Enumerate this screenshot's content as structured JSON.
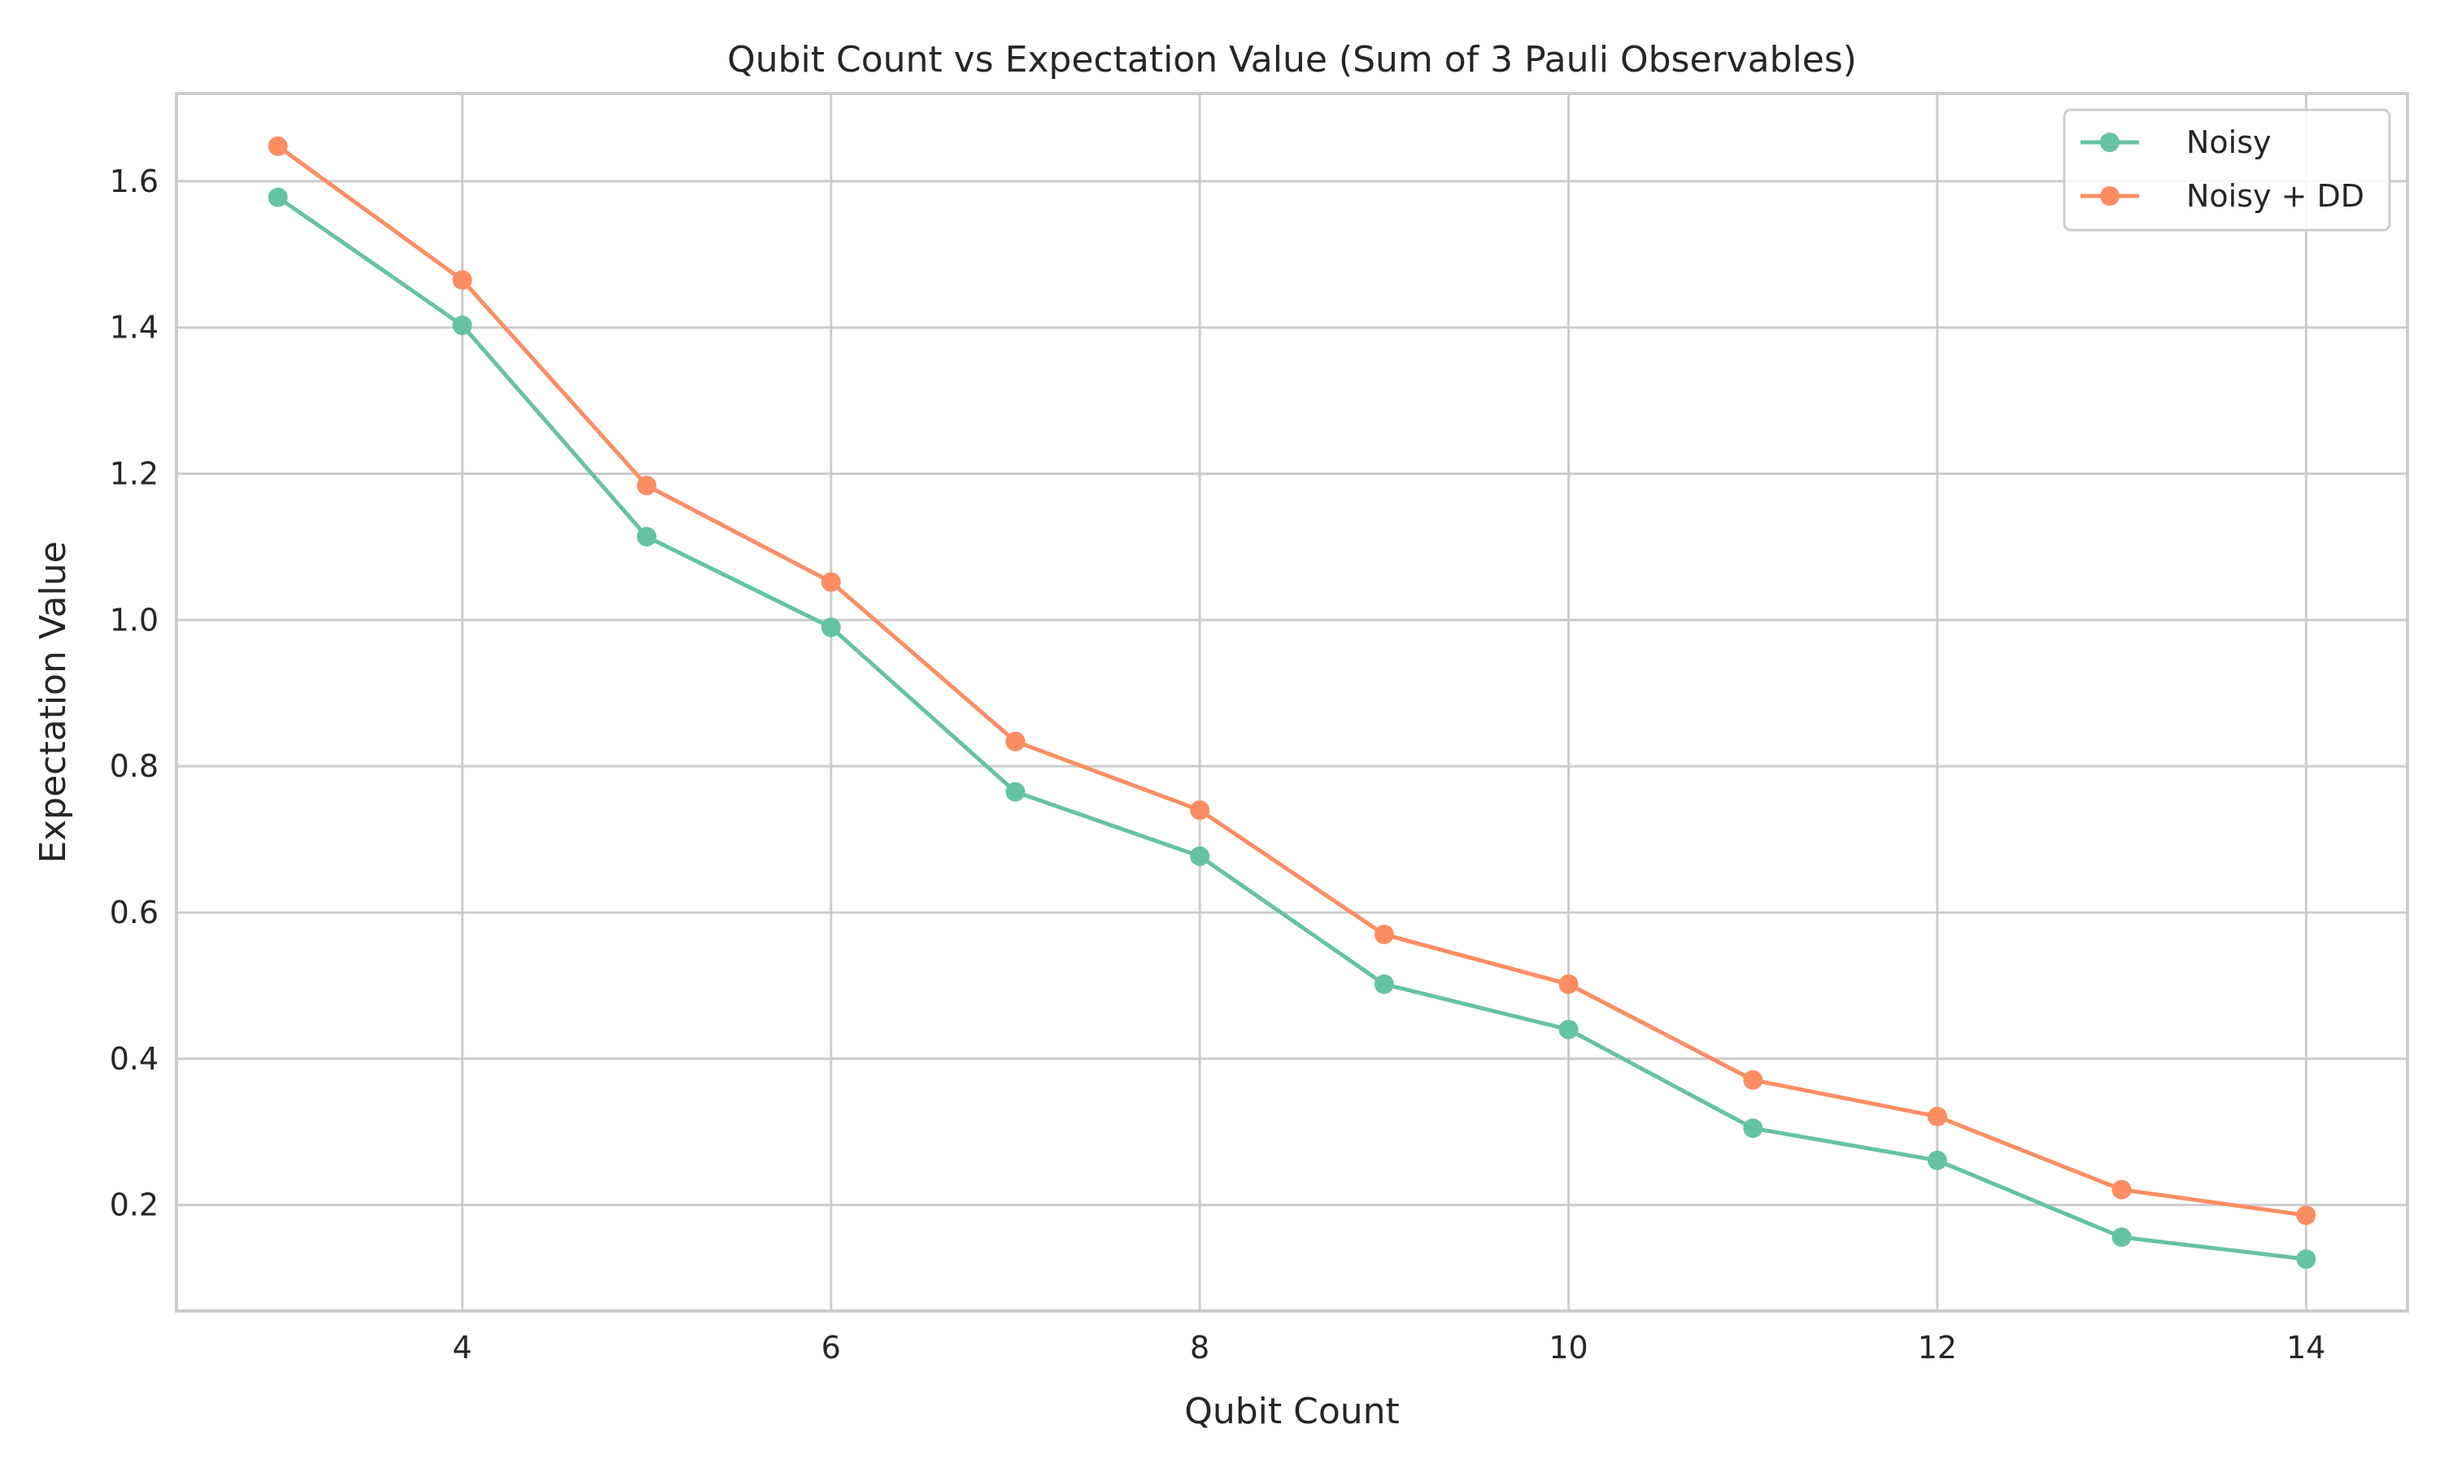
{
  "chart_data": {
    "type": "line",
    "title": "Qubit Count vs Expectation Value (Sum of 3 Pauli Observables)",
    "xlabel": "Qubit Count",
    "ylabel": "Expectation Value",
    "x": [
      3,
      4,
      5,
      6,
      7,
      8,
      9,
      10,
      11,
      12,
      13,
      14
    ],
    "xlim": [
      2.45,
      14.55
    ],
    "ylim": [
      0.055,
      1.72
    ],
    "xticks": [
      4,
      6,
      8,
      10,
      12,
      14
    ],
    "yticks": [
      0.2,
      0.4,
      0.6,
      0.8,
      1.0,
      1.2,
      1.4,
      1.6
    ],
    "xtick_labels": [
      "4",
      "6",
      "8",
      "10",
      "12",
      "14"
    ],
    "ytick_labels": [
      "0.2",
      "0.4",
      "0.6",
      "0.8",
      "1.0",
      "1.2",
      "1.4",
      "1.6"
    ],
    "grid": true,
    "legend_position": "top-right",
    "series": [
      {
        "name": "Noisy",
        "color": "#66c2a5",
        "values": [
          1.578,
          1.403,
          1.114,
          0.99,
          0.765,
          0.677,
          0.502,
          0.44,
          0.305,
          0.261,
          0.156,
          0.126
        ]
      },
      {
        "name": "Noisy + DD",
        "color": "#fc8d62",
        "values": [
          1.648,
          1.465,
          1.184,
          1.052,
          0.834,
          0.74,
          0.57,
          0.502,
          0.371,
          0.321,
          0.221,
          0.186
        ]
      }
    ]
  }
}
